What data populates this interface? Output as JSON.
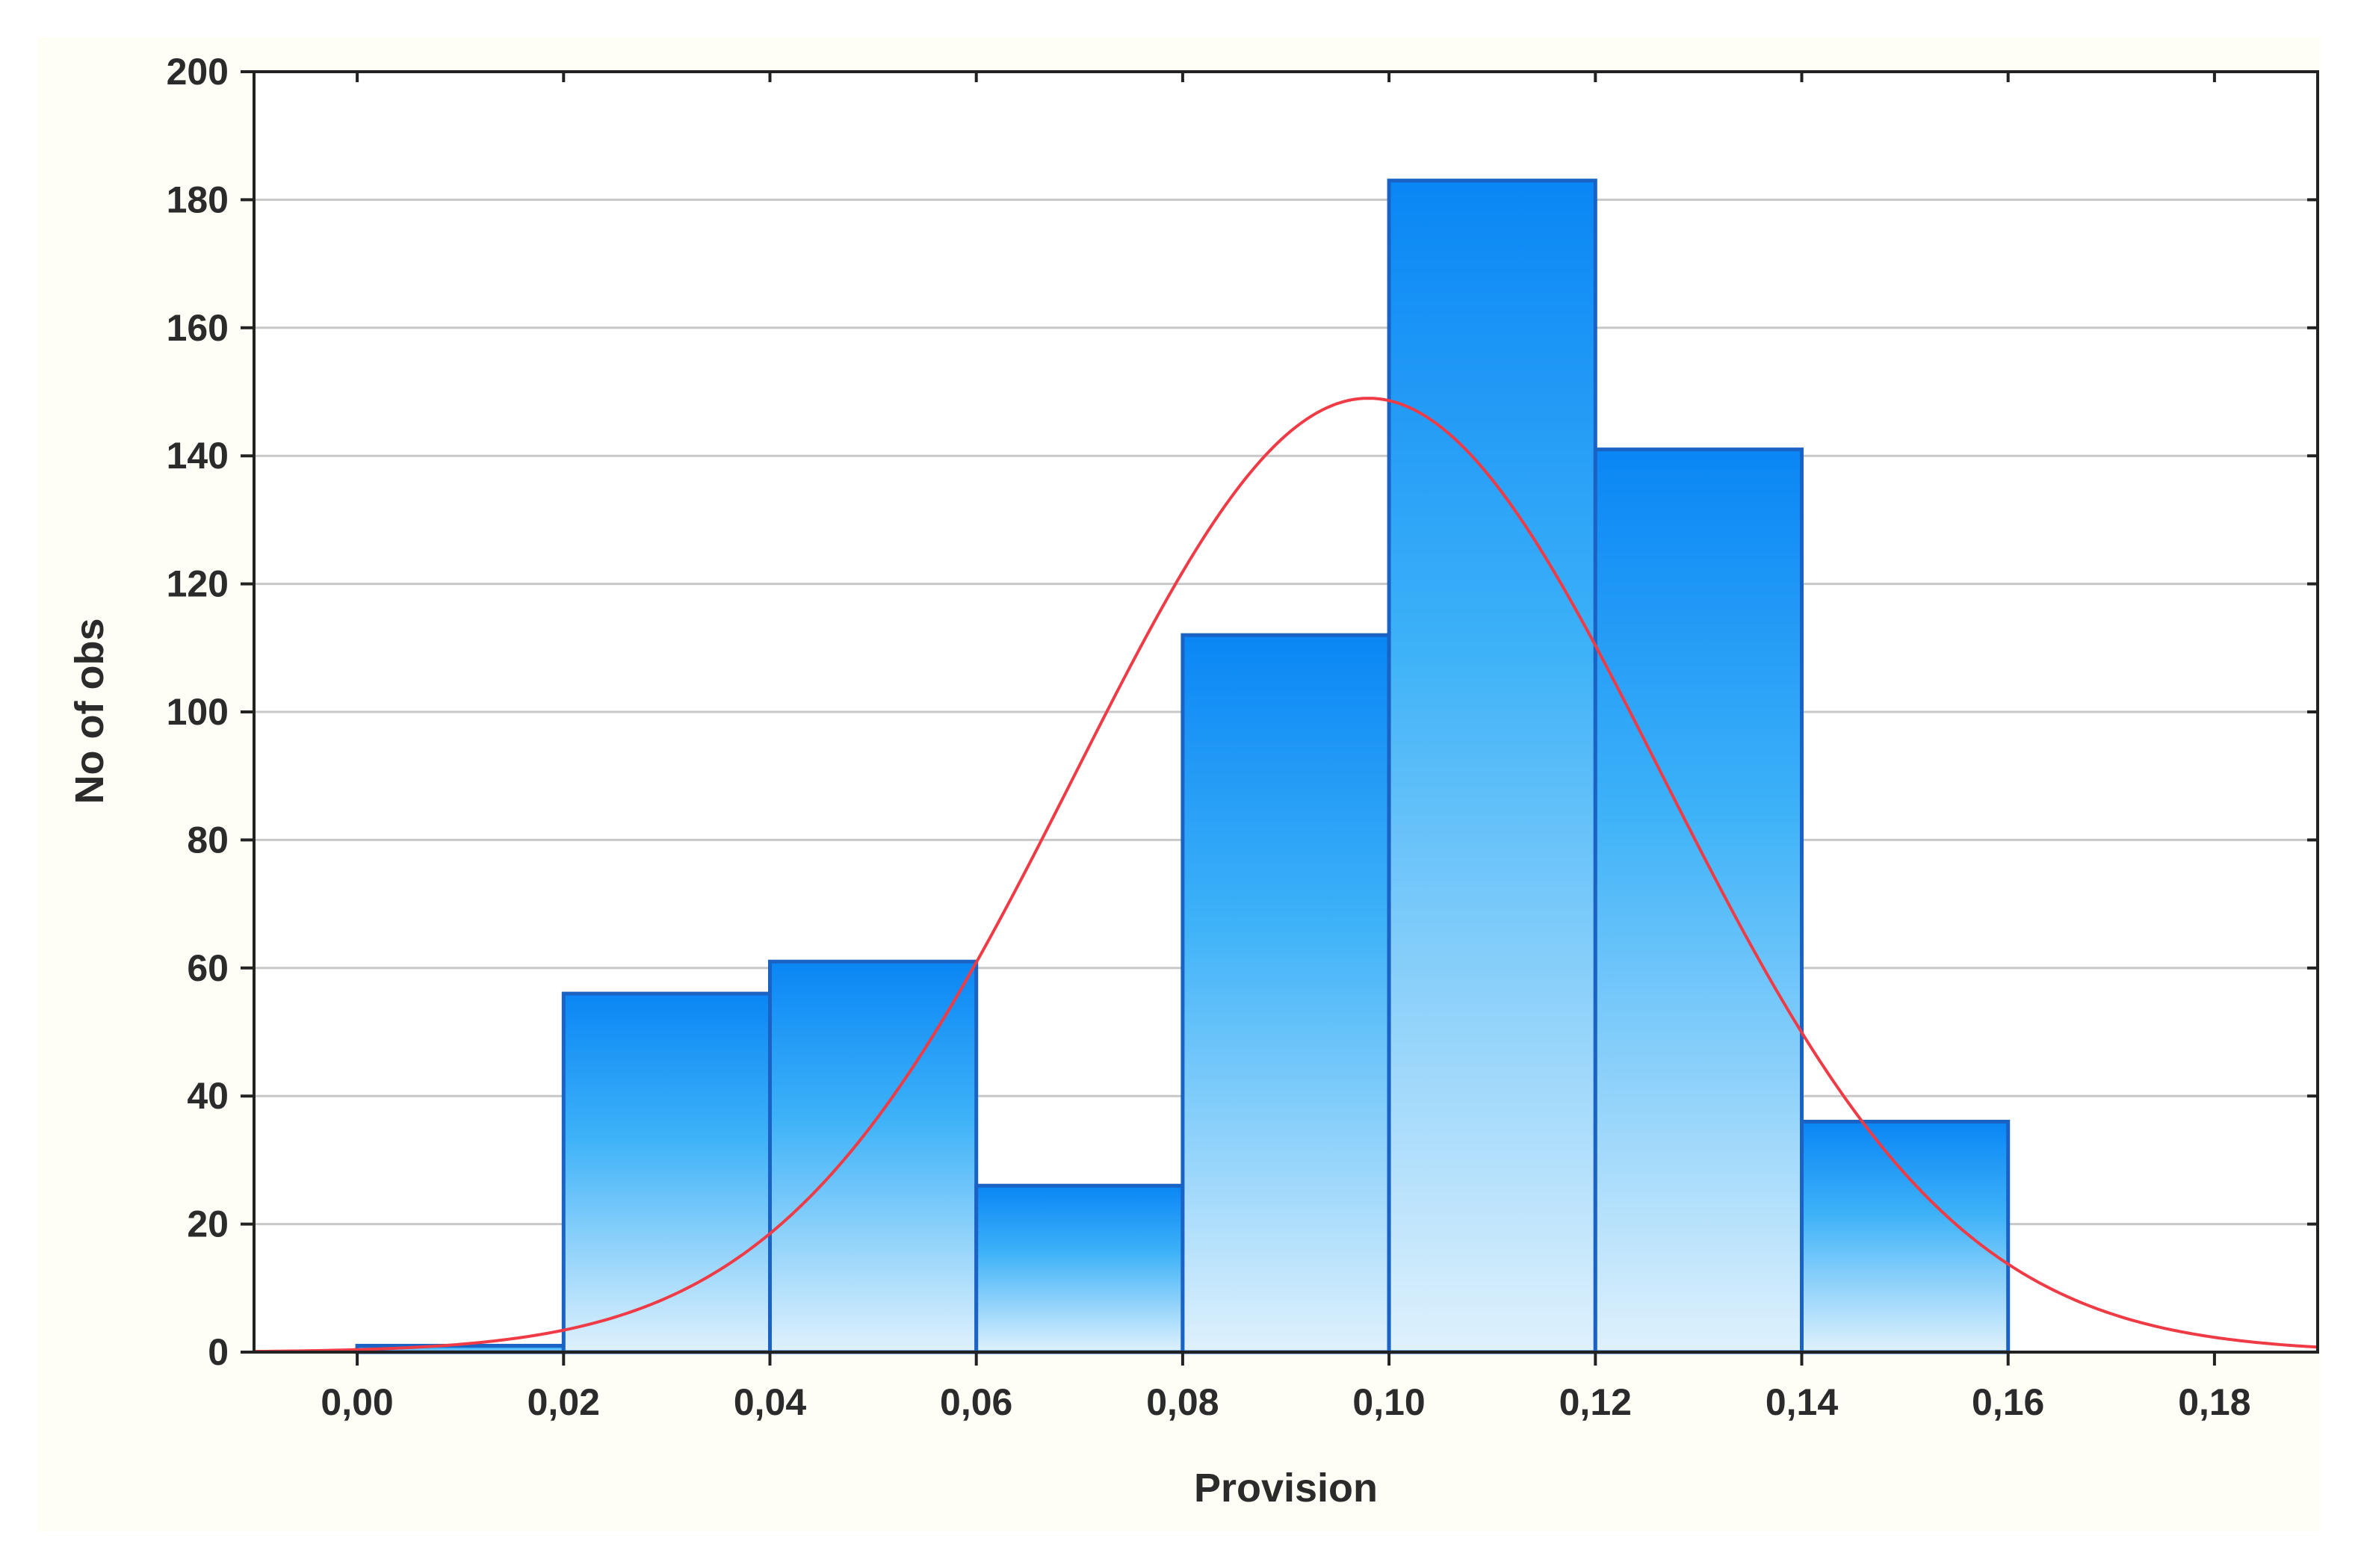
{
  "colors": {
    "background": "#fffef6",
    "plot_background": "#ffffff",
    "grid": "#c8c8c8",
    "frame": "#222222",
    "bar_outline": "#1a63c4",
    "bar_top": "#0a86f5",
    "bar_bottom": "#dff1fd",
    "curve": "#ef3b45"
  },
  "chart_data": {
    "type": "bar",
    "xlabel": "Provision",
    "ylabel": "No of obs",
    "xlim": [
      -0.01,
      0.19
    ],
    "ylim": [
      0,
      200
    ],
    "grid": true,
    "x_ticks": [
      0.0,
      0.02,
      0.04,
      0.06,
      0.08,
      0.1,
      0.12,
      0.14,
      0.16,
      0.18
    ],
    "x_tick_labels": [
      "0,00",
      "0,02",
      "0,04",
      "0,06",
      "0,08",
      "0,10",
      "0,12",
      "0,14",
      "0,16",
      "0,18"
    ],
    "y_ticks": [
      0,
      20,
      40,
      60,
      80,
      100,
      120,
      140,
      160,
      180,
      200
    ],
    "y_tick_labels": [
      "0",
      "20",
      "40",
      "60",
      "80",
      "100",
      "120",
      "140",
      "160",
      "180",
      "200"
    ],
    "bins": [
      {
        "x0": 0.0,
        "x1": 0.02,
        "value": 1
      },
      {
        "x0": 0.02,
        "x1": 0.04,
        "value": 56
      },
      {
        "x0": 0.04,
        "x1": 0.06,
        "value": 61
      },
      {
        "x0": 0.06,
        "x1": 0.08,
        "value": 26
      },
      {
        "x0": 0.08,
        "x1": 0.1,
        "value": 112
      },
      {
        "x0": 0.1,
        "x1": 0.12,
        "value": 183
      },
      {
        "x0": 0.12,
        "x1": 0.14,
        "value": 141
      },
      {
        "x0": 0.14,
        "x1": 0.16,
        "value": 36
      }
    ],
    "normal_fit": {
      "mean": 0.098,
      "sd": 0.0284,
      "peak": 149
    }
  }
}
